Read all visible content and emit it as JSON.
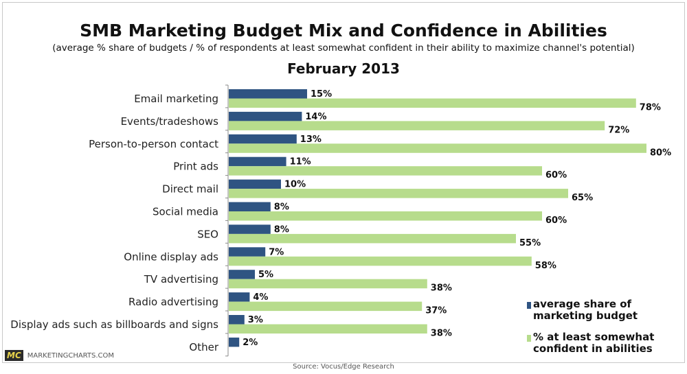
{
  "chart_data": {
    "type": "bar",
    "orientation": "horizontal",
    "title": "SMB Marketing Budget Mix and Confidence in Abilities",
    "subtitle": "(average % share of budgets / % of respondents at least somewhat confident in their ability to maximize channel's potential)",
    "date_label": "February 2013",
    "categories": [
      "Email marketing",
      "Events/tradeshows",
      "Person-to-person contact",
      "Print ads",
      "Direct mail",
      "Social media",
      "SEO",
      "Online display ads",
      "TV advertising",
      "Radio advertising",
      "Display ads such as billboards and signs",
      "Other"
    ],
    "series": [
      {
        "name": "average share of marketing budget",
        "color": "#2f5482",
        "values": [
          15,
          14,
          13,
          11,
          10,
          8,
          8,
          7,
          5,
          4,
          3,
          2
        ],
        "labels": [
          "15%",
          "14%",
          "13%",
          "11%",
          "10%",
          "8%",
          "8%",
          "7%",
          "5%",
          "4%",
          "3%",
          "2%"
        ]
      },
      {
        "name": "% at least somewhat confident in abilities",
        "color": "#b7dc8c",
        "values": [
          78,
          72,
          80,
          60,
          65,
          60,
          55,
          58,
          38,
          37,
          38,
          null
        ],
        "labels": [
          "78%",
          "72%",
          "80%",
          "60%",
          "65%",
          "60%",
          "55%",
          "58%",
          "38%",
          "37%",
          "38%",
          ""
        ]
      }
    ],
    "legend_lines": [
      [
        "average share of",
        "marketing budget"
      ],
      [
        "% at least somewhat",
        "confident in abilities"
      ]
    ],
    "xlim": [
      0,
      80
    ],
    "grid": false,
    "legend_placement": "bottom-right"
  },
  "source": "Source: Vocus/Edge Research",
  "logo": {
    "mark": "MC",
    "site": "MARKETINGCHARTS.COM"
  }
}
